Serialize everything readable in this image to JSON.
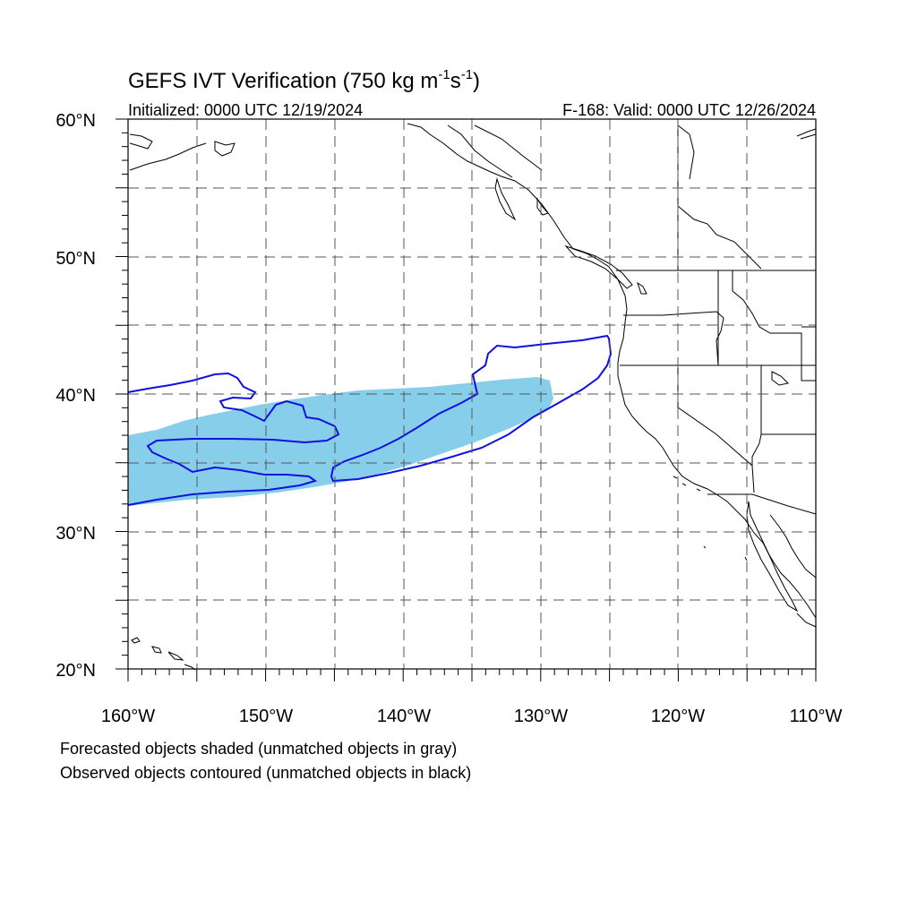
{
  "title": {
    "main": "GEFS IVT Verification (750 kg m",
    "exp1": "-1",
    "mid": "s",
    "exp2": "-1",
    "close": ")"
  },
  "initialized": "Initialized: 0000 UTC 12/19/2024",
  "valid": "F-168: Valid: 0000 UTC 12/26/2024",
  "lat_labels": [
    "60°N",
    "50°N",
    "40°N",
    "30°N",
    "20°N"
  ],
  "lon_labels": [
    "160°W",
    "150°W",
    "140°W",
    "130°W",
    "120°W",
    "110°W"
  ],
  "legend": {
    "forecast": "Forecasted objects shaded (unmatched objects in gray)",
    "observed": "Observed objects contoured (unmatched objects in black)"
  },
  "map": {
    "lon_range": [
      -160,
      -110
    ],
    "lat_range": [
      20,
      60
    ],
    "grid_dashed": true,
    "forecast_object_color": "#87ceeb",
    "observed_contour_color": "#1010e0",
    "coastline_color": "#000000"
  }
}
